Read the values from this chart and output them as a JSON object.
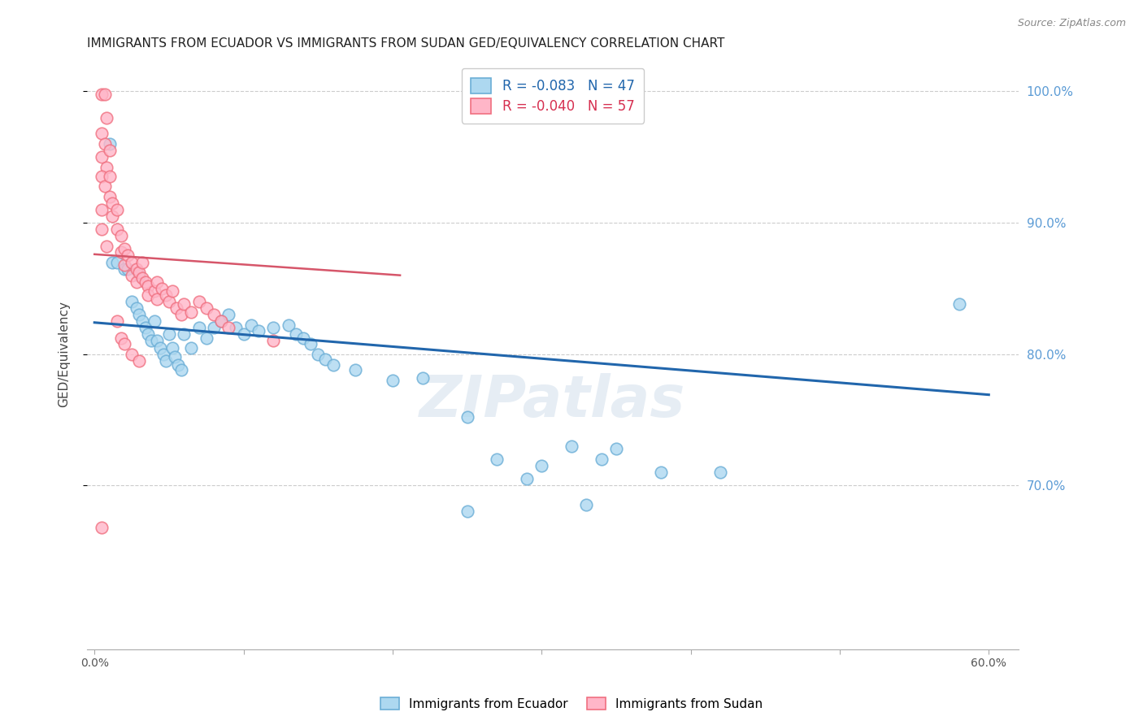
{
  "title": "IMMIGRANTS FROM ECUADOR VS IMMIGRANTS FROM SUDAN GED/EQUIVALENCY CORRELATION CHART",
  "source": "Source: ZipAtlas.com",
  "xlabel": "",
  "ylabel": "GED/Equivalency",
  "xlim": [
    -0.005,
    0.62
  ],
  "ylim": [
    0.575,
    1.025
  ],
  "yticks": [
    0.7,
    0.8,
    0.9,
    1.0
  ],
  "ytick_labels": [
    "70.0%",
    "80.0%",
    "90.0%",
    "100.0%"
  ],
  "xticks": [
    0.0,
    0.1,
    0.2,
    0.3,
    0.4,
    0.5,
    0.6
  ],
  "xtick_labels": [
    "0.0%",
    "",
    "",
    "",
    "",
    "",
    "60.0%"
  ],
  "ecuador_color_face": "#add8f0",
  "ecuador_color_edge": "#6baed6",
  "sudan_color_face": "#ffb6c8",
  "sudan_color_edge": "#f07080",
  "ecuador_trend_color": "#2166ac",
  "sudan_trend_color": "#d6566a",
  "ecuador_points": [
    [
      0.01,
      0.96
    ],
    [
      0.012,
      0.87
    ],
    [
      0.015,
      0.87
    ],
    [
      0.02,
      0.865
    ],
    [
      0.022,
      0.865
    ],
    [
      0.025,
      0.84
    ],
    [
      0.028,
      0.835
    ],
    [
      0.03,
      0.86
    ],
    [
      0.03,
      0.83
    ],
    [
      0.032,
      0.825
    ],
    [
      0.034,
      0.82
    ],
    [
      0.036,
      0.815
    ],
    [
      0.038,
      0.81
    ],
    [
      0.04,
      0.825
    ],
    [
      0.042,
      0.81
    ],
    [
      0.044,
      0.805
    ],
    [
      0.046,
      0.8
    ],
    [
      0.048,
      0.795
    ],
    [
      0.05,
      0.815
    ],
    [
      0.052,
      0.805
    ],
    [
      0.054,
      0.798
    ],
    [
      0.056,
      0.792
    ],
    [
      0.058,
      0.788
    ],
    [
      0.06,
      0.815
    ],
    [
      0.065,
      0.805
    ],
    [
      0.07,
      0.82
    ],
    [
      0.075,
      0.812
    ],
    [
      0.08,
      0.82
    ],
    [
      0.085,
      0.825
    ],
    [
      0.09,
      0.83
    ],
    [
      0.095,
      0.82
    ],
    [
      0.1,
      0.815
    ],
    [
      0.105,
      0.822
    ],
    [
      0.11,
      0.818
    ],
    [
      0.12,
      0.82
    ],
    [
      0.13,
      0.822
    ],
    [
      0.135,
      0.815
    ],
    [
      0.14,
      0.812
    ],
    [
      0.145,
      0.808
    ],
    [
      0.15,
      0.8
    ],
    [
      0.155,
      0.796
    ],
    [
      0.16,
      0.792
    ],
    [
      0.175,
      0.788
    ],
    [
      0.2,
      0.78
    ],
    [
      0.22,
      0.782
    ],
    [
      0.25,
      0.752
    ],
    [
      0.27,
      0.72
    ],
    [
      0.3,
      0.715
    ],
    [
      0.32,
      0.73
    ],
    [
      0.33,
      0.685
    ],
    [
      0.34,
      0.72
    ],
    [
      0.25,
      0.68
    ],
    [
      0.29,
      0.705
    ],
    [
      0.35,
      0.728
    ],
    [
      0.38,
      0.71
    ],
    [
      0.42,
      0.71
    ],
    [
      0.58,
      0.838
    ]
  ],
  "sudan_points": [
    [
      0.005,
      0.998
    ],
    [
      0.007,
      0.998
    ],
    [
      0.008,
      0.98
    ],
    [
      0.005,
      0.968
    ],
    [
      0.007,
      0.96
    ],
    [
      0.005,
      0.95
    ],
    [
      0.008,
      0.942
    ],
    [
      0.005,
      0.935
    ],
    [
      0.007,
      0.928
    ],
    [
      0.01,
      0.955
    ],
    [
      0.01,
      0.935
    ],
    [
      0.01,
      0.92
    ],
    [
      0.012,
      0.915
    ],
    [
      0.005,
      0.91
    ],
    [
      0.012,
      0.905
    ],
    [
      0.015,
      0.91
    ],
    [
      0.005,
      0.895
    ],
    [
      0.015,
      0.895
    ],
    [
      0.008,
      0.882
    ],
    [
      0.018,
      0.89
    ],
    [
      0.018,
      0.878
    ],
    [
      0.02,
      0.88
    ],
    [
      0.02,
      0.868
    ],
    [
      0.022,
      0.875
    ],
    [
      0.025,
      0.87
    ],
    [
      0.025,
      0.86
    ],
    [
      0.028,
      0.865
    ],
    [
      0.028,
      0.855
    ],
    [
      0.03,
      0.862
    ],
    [
      0.032,
      0.87
    ],
    [
      0.032,
      0.858
    ],
    [
      0.034,
      0.855
    ],
    [
      0.036,
      0.852
    ],
    [
      0.036,
      0.845
    ],
    [
      0.04,
      0.848
    ],
    [
      0.042,
      0.855
    ],
    [
      0.042,
      0.842
    ],
    [
      0.045,
      0.85
    ],
    [
      0.048,
      0.845
    ],
    [
      0.05,
      0.84
    ],
    [
      0.052,
      0.848
    ],
    [
      0.055,
      0.835
    ],
    [
      0.058,
      0.83
    ],
    [
      0.06,
      0.838
    ],
    [
      0.065,
      0.832
    ],
    [
      0.07,
      0.84
    ],
    [
      0.075,
      0.835
    ],
    [
      0.08,
      0.83
    ],
    [
      0.085,
      0.825
    ],
    [
      0.09,
      0.82
    ],
    [
      0.015,
      0.825
    ],
    [
      0.018,
      0.812
    ],
    [
      0.02,
      0.808
    ],
    [
      0.025,
      0.8
    ],
    [
      0.03,
      0.795
    ],
    [
      0.12,
      0.81
    ],
    [
      0.005,
      0.668
    ]
  ],
  "ecuador_trend_x": [
    0.0,
    0.6
  ],
  "ecuador_trend_y": [
    0.824,
    0.769
  ],
  "sudan_trend_x": [
    0.0,
    0.205
  ],
  "sudan_trend_y": [
    0.876,
    0.86
  ],
  "watermark": "ZIPatlas",
  "background_color": "#ffffff",
  "grid_color": "#cccccc",
  "title_fontsize": 11,
  "axis_label_fontsize": 11,
  "tick_label_color": "#5b9bd5",
  "right_tick_label_color": "#5b9bd5"
}
